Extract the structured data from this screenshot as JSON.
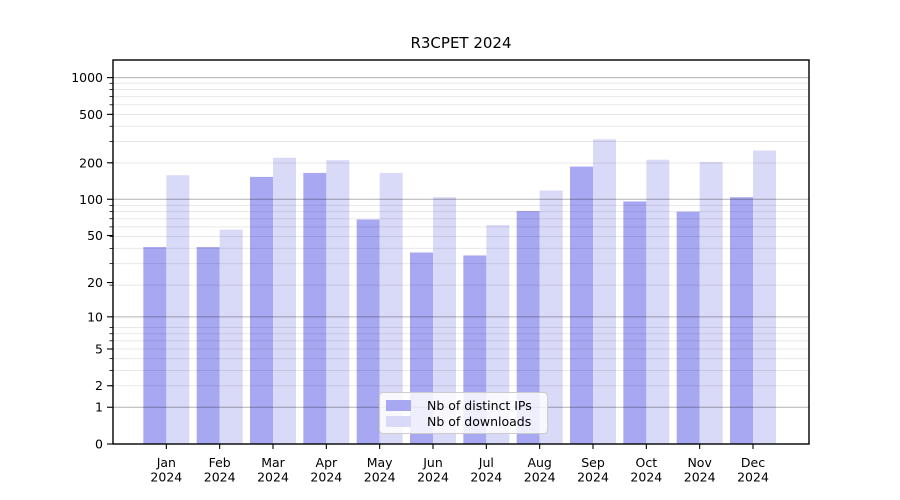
{
  "figure": {
    "title": "R3CPET 2024"
  },
  "chart_data": {
    "type": "bar",
    "title": "R3CPET 2024",
    "categories": [
      "Jan 2024",
      "Feb 2024",
      "Mar 2024",
      "Apr 2024",
      "May 2024",
      "Jun 2024",
      "Jul 2024",
      "Aug 2024",
      "Sep 2024",
      "Oct 2024",
      "Nov 2024",
      "Dec 2024"
    ],
    "series": [
      {
        "name": "Nb of distinct IPs",
        "color": "#a8a8f2",
        "values": [
          40,
          40,
          153,
          165,
          68,
          36,
          34,
          80,
          186,
          96,
          79,
          104
        ]
      },
      {
        "name": "Nb of downloads",
        "color": "#d9d9f8",
        "values": [
          158,
          56,
          220,
          210,
          165,
          104,
          61,
          118,
          312,
          212,
          203,
          252
        ]
      }
    ],
    "xlabel": "",
    "ylabel": "",
    "yticks": [
      0,
      1,
      2,
      5,
      10,
      20,
      50,
      100,
      200,
      500,
      1000
    ],
    "yscale": "log10(1+x)",
    "ylim": [
      0,
      1395
    ],
    "grid": true,
    "major_grid_values": [
      1,
      10,
      100,
      1000
    ],
    "legend_position": "lower center",
    "colors": {
      "major_gridline": "rgba(0,0,0,0.31)",
      "minor_gridline": "rgba(0,0,0,0.09)",
      "axis": "#000000"
    }
  }
}
